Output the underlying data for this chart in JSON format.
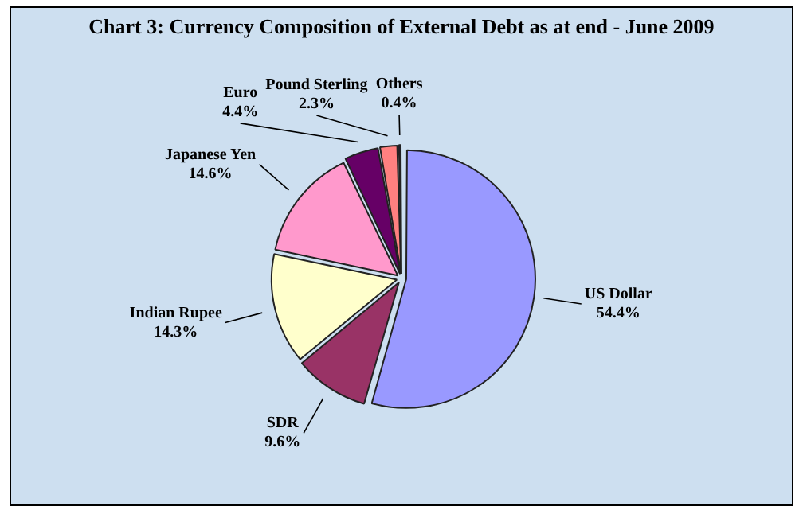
{
  "chart_data": {
    "type": "pie",
    "title": "Chart 3: Currency Composition of External Debt as at end - June 2009",
    "categories": [
      "US Dollar",
      "SDR",
      "Indian Rupee",
      "Japanese Yen",
      "Euro",
      "Pound Sterling",
      "Others"
    ],
    "values": [
      54.4,
      9.6,
      14.3,
      14.6,
      4.4,
      2.3,
      0.4
    ],
    "value_labels": [
      "54.4%",
      "9.6%",
      "14.3%",
      "14.6%",
      "4.4%",
      "2.3%",
      "0.4%"
    ],
    "colors": [
      "#9999ff",
      "#993366",
      "#ffffcc",
      "#ff99cc",
      "#660066",
      "#ff8080",
      "#000080"
    ],
    "legend": false
  }
}
